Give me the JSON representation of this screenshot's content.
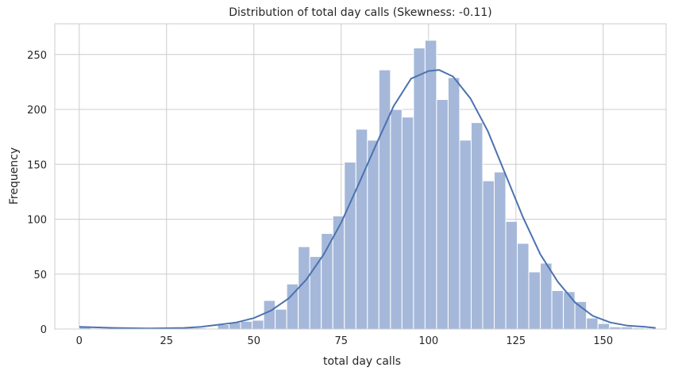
{
  "chart_data": {
    "type": "bar",
    "title": "Distribution of total day calls (Skewness: -0.11)",
    "xlabel": "total day calls",
    "ylabel": "Frequency",
    "xlim": [
      -7,
      168
    ],
    "ylim": [
      0,
      278
    ],
    "xticks": [
      0,
      25,
      50,
      75,
      100,
      125,
      150
    ],
    "yticks": [
      0,
      50,
      100,
      150,
      200,
      250
    ],
    "grid": true,
    "bin_width": 3.3,
    "bins": [
      {
        "x0": 0.0,
        "x1": 3.3,
        "count": 2
      },
      {
        "x0": 29.7,
        "x1": 33.0,
        "count": 1
      },
      {
        "x0": 33.0,
        "x1": 36.3,
        "count": 1
      },
      {
        "x0": 39.6,
        "x1": 42.9,
        "count": 4
      },
      {
        "x0": 42.9,
        "x1": 46.2,
        "count": 6
      },
      {
        "x0": 46.2,
        "x1": 49.5,
        "count": 7
      },
      {
        "x0": 49.5,
        "x1": 52.8,
        "count": 8
      },
      {
        "x0": 52.8,
        "x1": 56.1,
        "count": 26
      },
      {
        "x0": 56.1,
        "x1": 59.4,
        "count": 18
      },
      {
        "x0": 59.4,
        "x1": 62.7,
        "count": 41
      },
      {
        "x0": 62.7,
        "x1": 66.0,
        "count": 75
      },
      {
        "x0": 66.0,
        "x1": 69.3,
        "count": 66
      },
      {
        "x0": 69.3,
        "x1": 72.6,
        "count": 87
      },
      {
        "x0": 72.6,
        "x1": 75.9,
        "count": 103
      },
      {
        "x0": 75.9,
        "x1": 79.2,
        "count": 152
      },
      {
        "x0": 79.2,
        "x1": 82.5,
        "count": 182
      },
      {
        "x0": 82.5,
        "x1": 85.8,
        "count": 172
      },
      {
        "x0": 85.8,
        "x1": 89.1,
        "count": 236
      },
      {
        "x0": 89.1,
        "x1": 92.4,
        "count": 200
      },
      {
        "x0": 92.4,
        "x1": 95.7,
        "count": 193
      },
      {
        "x0": 95.7,
        "x1": 99.0,
        "count": 256
      },
      {
        "x0": 99.0,
        "x1": 102.3,
        "count": 263
      },
      {
        "x0": 102.3,
        "x1": 105.6,
        "count": 209
      },
      {
        "x0": 105.6,
        "x1": 108.9,
        "count": 229
      },
      {
        "x0": 108.9,
        "x1": 112.2,
        "count": 172
      },
      {
        "x0": 112.2,
        "x1": 115.5,
        "count": 188
      },
      {
        "x0": 115.5,
        "x1": 118.8,
        "count": 135
      },
      {
        "x0": 118.8,
        "x1": 122.1,
        "count": 143
      },
      {
        "x0": 122.1,
        "x1": 125.4,
        "count": 98
      },
      {
        "x0": 125.4,
        "x1": 128.7,
        "count": 78
      },
      {
        "x0": 128.7,
        "x1": 132.0,
        "count": 52
      },
      {
        "x0": 132.0,
        "x1": 135.3,
        "count": 60
      },
      {
        "x0": 135.3,
        "x1": 138.6,
        "count": 35
      },
      {
        "x0": 138.6,
        "x1": 141.9,
        "count": 34
      },
      {
        "x0": 141.9,
        "x1": 145.2,
        "count": 25
      },
      {
        "x0": 145.2,
        "x1": 148.5,
        "count": 10
      },
      {
        "x0": 148.5,
        "x1": 151.8,
        "count": 5
      },
      {
        "x0": 151.8,
        "x1": 155.1,
        "count": 2
      },
      {
        "x0": 155.1,
        "x1": 158.4,
        "count": 2
      },
      {
        "x0": 158.4,
        "x1": 161.7,
        "count": 1
      }
    ],
    "kde": [
      [
        0,
        2
      ],
      [
        10,
        1
      ],
      [
        20,
        0.5
      ],
      [
        30,
        1
      ],
      [
        35,
        2
      ],
      [
        40,
        4
      ],
      [
        45,
        6
      ],
      [
        50,
        10
      ],
      [
        55,
        17
      ],
      [
        60,
        28
      ],
      [
        65,
        45
      ],
      [
        70,
        68
      ],
      [
        75,
        97
      ],
      [
        80,
        132
      ],
      [
        85,
        168
      ],
      [
        90,
        203
      ],
      [
        95,
        228
      ],
      [
        100,
        235
      ],
      [
        103,
        236
      ],
      [
        107,
        230
      ],
      [
        112,
        210
      ],
      [
        117,
        180
      ],
      [
        122,
        141
      ],
      [
        127,
        102
      ],
      [
        132,
        68
      ],
      [
        137,
        43
      ],
      [
        142,
        24
      ],
      [
        147,
        12
      ],
      [
        152,
        6
      ],
      [
        157,
        3
      ],
      [
        162,
        2
      ],
      [
        165,
        1
      ]
    ],
    "colors": {
      "bar_fill": "#a5b8da",
      "bar_edge": "#ffffff",
      "kde_line": "#4c72b0",
      "grid": "#cccccc",
      "text": "#262626"
    }
  }
}
